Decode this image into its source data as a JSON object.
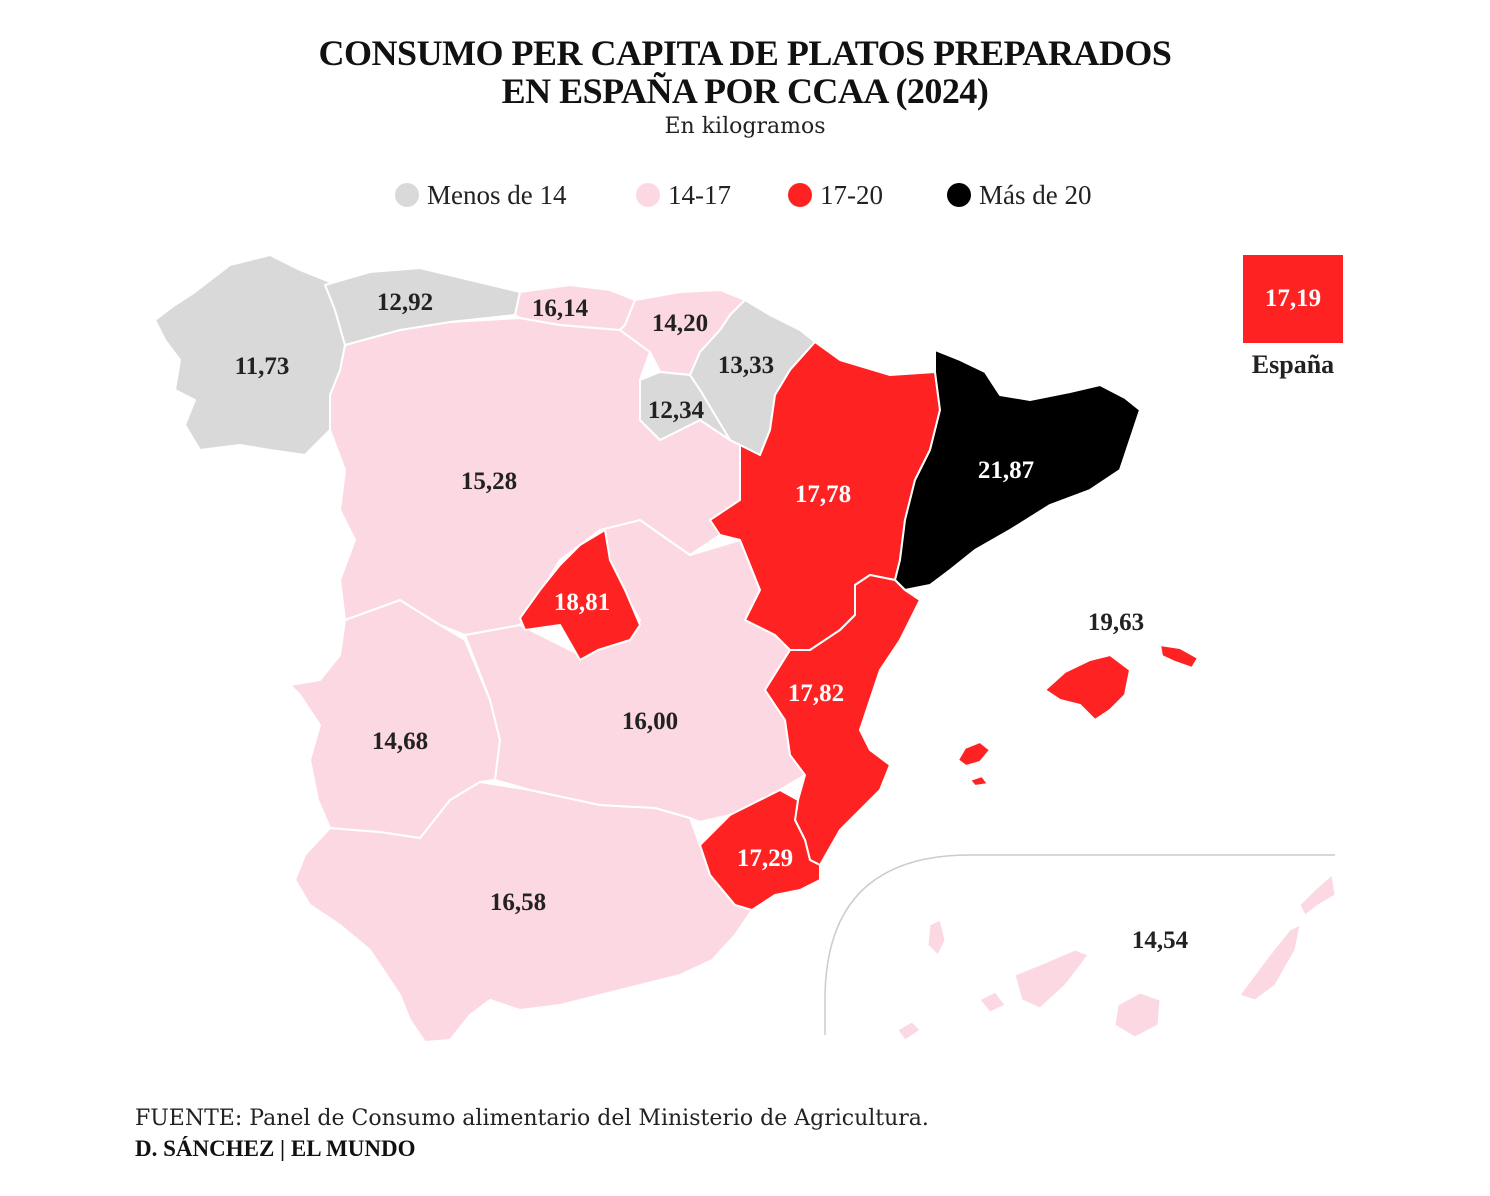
{
  "title": {
    "line1": "CONSUMO PER CAPITA DE PLATOS PREPARADOS",
    "line2": "EN ESPAÑA POR CCAA (2024)"
  },
  "subtitle": "En kilogramos",
  "legend": [
    {
      "label": "Menos de 14",
      "color": "#d9d9d9"
    },
    {
      "label": "14-17",
      "color": "#fcd9e2"
    },
    {
      "label": "17-20",
      "color": "#ff2222"
    },
    {
      "label": "Más de 20",
      "color": "#000000"
    }
  ],
  "national": {
    "value": "17,19",
    "label": "España",
    "color": "#ff2222"
  },
  "colors": {
    "gray": "#d9d9d9",
    "pink": "#fcd9e2",
    "red": "#ff2222",
    "black": "#000000",
    "border": "#ffffff",
    "inset_line": "#cccccc"
  },
  "regions": [
    {
      "name": "Galicia",
      "value": "11,73",
      "class": "gray"
    },
    {
      "name": "Asturias",
      "value": "12,92",
      "class": "gray"
    },
    {
      "name": "Cantabria",
      "value": "16,14",
      "class": "pink"
    },
    {
      "name": "País Vasco",
      "value": "14,20",
      "class": "pink"
    },
    {
      "name": "Navarra",
      "value": "13,33",
      "class": "gray"
    },
    {
      "name": "La Rioja",
      "value": "12,34",
      "class": "gray"
    },
    {
      "name": "Castilla y León",
      "value": "15,28",
      "class": "pink"
    },
    {
      "name": "Aragón",
      "value": "17,78",
      "class": "red"
    },
    {
      "name": "Cataluña",
      "value": "21,87",
      "class": "black"
    },
    {
      "name": "Madrid",
      "value": "18,81",
      "class": "red"
    },
    {
      "name": "Extremadura",
      "value": "14,68",
      "class": "pink"
    },
    {
      "name": "Castilla-La Mancha",
      "value": "16,00",
      "class": "pink"
    },
    {
      "name": "Comunidad Valenciana",
      "value": "17,82",
      "class": "red"
    },
    {
      "name": "Islas Baleares",
      "value": "19,63",
      "class": "red"
    },
    {
      "name": "Murcia",
      "value": "17,29",
      "class": "red"
    },
    {
      "name": "Andalucía",
      "value": "16,58",
      "class": "pink"
    },
    {
      "name": "Canarias",
      "value": "14,54",
      "class": "pink"
    }
  ],
  "source": {
    "prefix": "FUENTE:",
    "text": " Panel de Consumo alimentario del Ministerio de Agricultura."
  },
  "credit": "D. SÁNCHEZ | EL MUNDO"
}
